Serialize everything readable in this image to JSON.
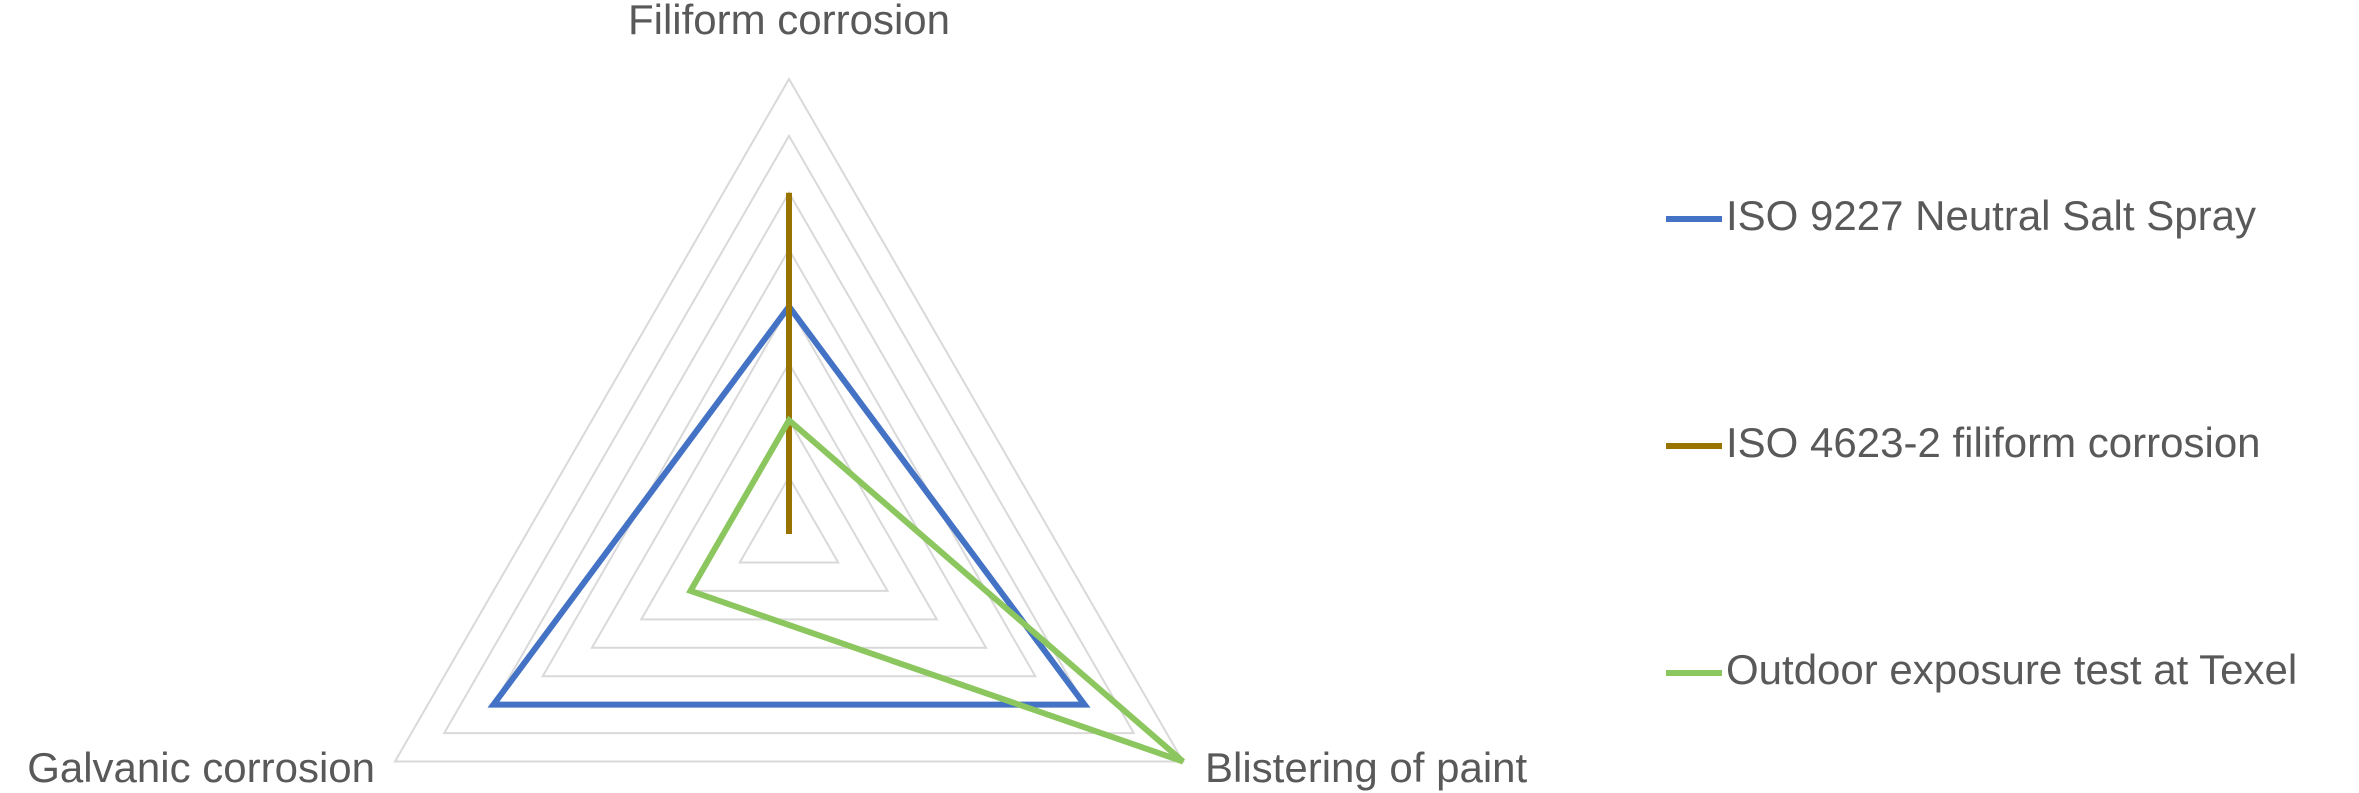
{
  "chart_data": {
    "type": "radar",
    "categories": [
      "Filiform corrosion",
      "Blistering of paint",
      "Galvanic corrosion"
    ],
    "series": [
      {
        "name": "ISO 9227 Neutral Salt Spray",
        "color": "#4472c4",
        "values": [
          4,
          6,
          6
        ]
      },
      {
        "name": "ISO 4623-2 filiform corrosion",
        "color": "#997300",
        "values": [
          6,
          0,
          0
        ]
      },
      {
        "name": "Outdoor exposure test at Texel",
        "color": "#8cc65f",
        "values": [
          2,
          8,
          2
        ]
      }
    ],
    "rlim": [
      0,
      8
    ],
    "rticks": [
      0,
      1,
      2,
      3,
      4,
      5,
      6,
      7,
      8
    ],
    "grid": true,
    "legend": "right"
  }
}
